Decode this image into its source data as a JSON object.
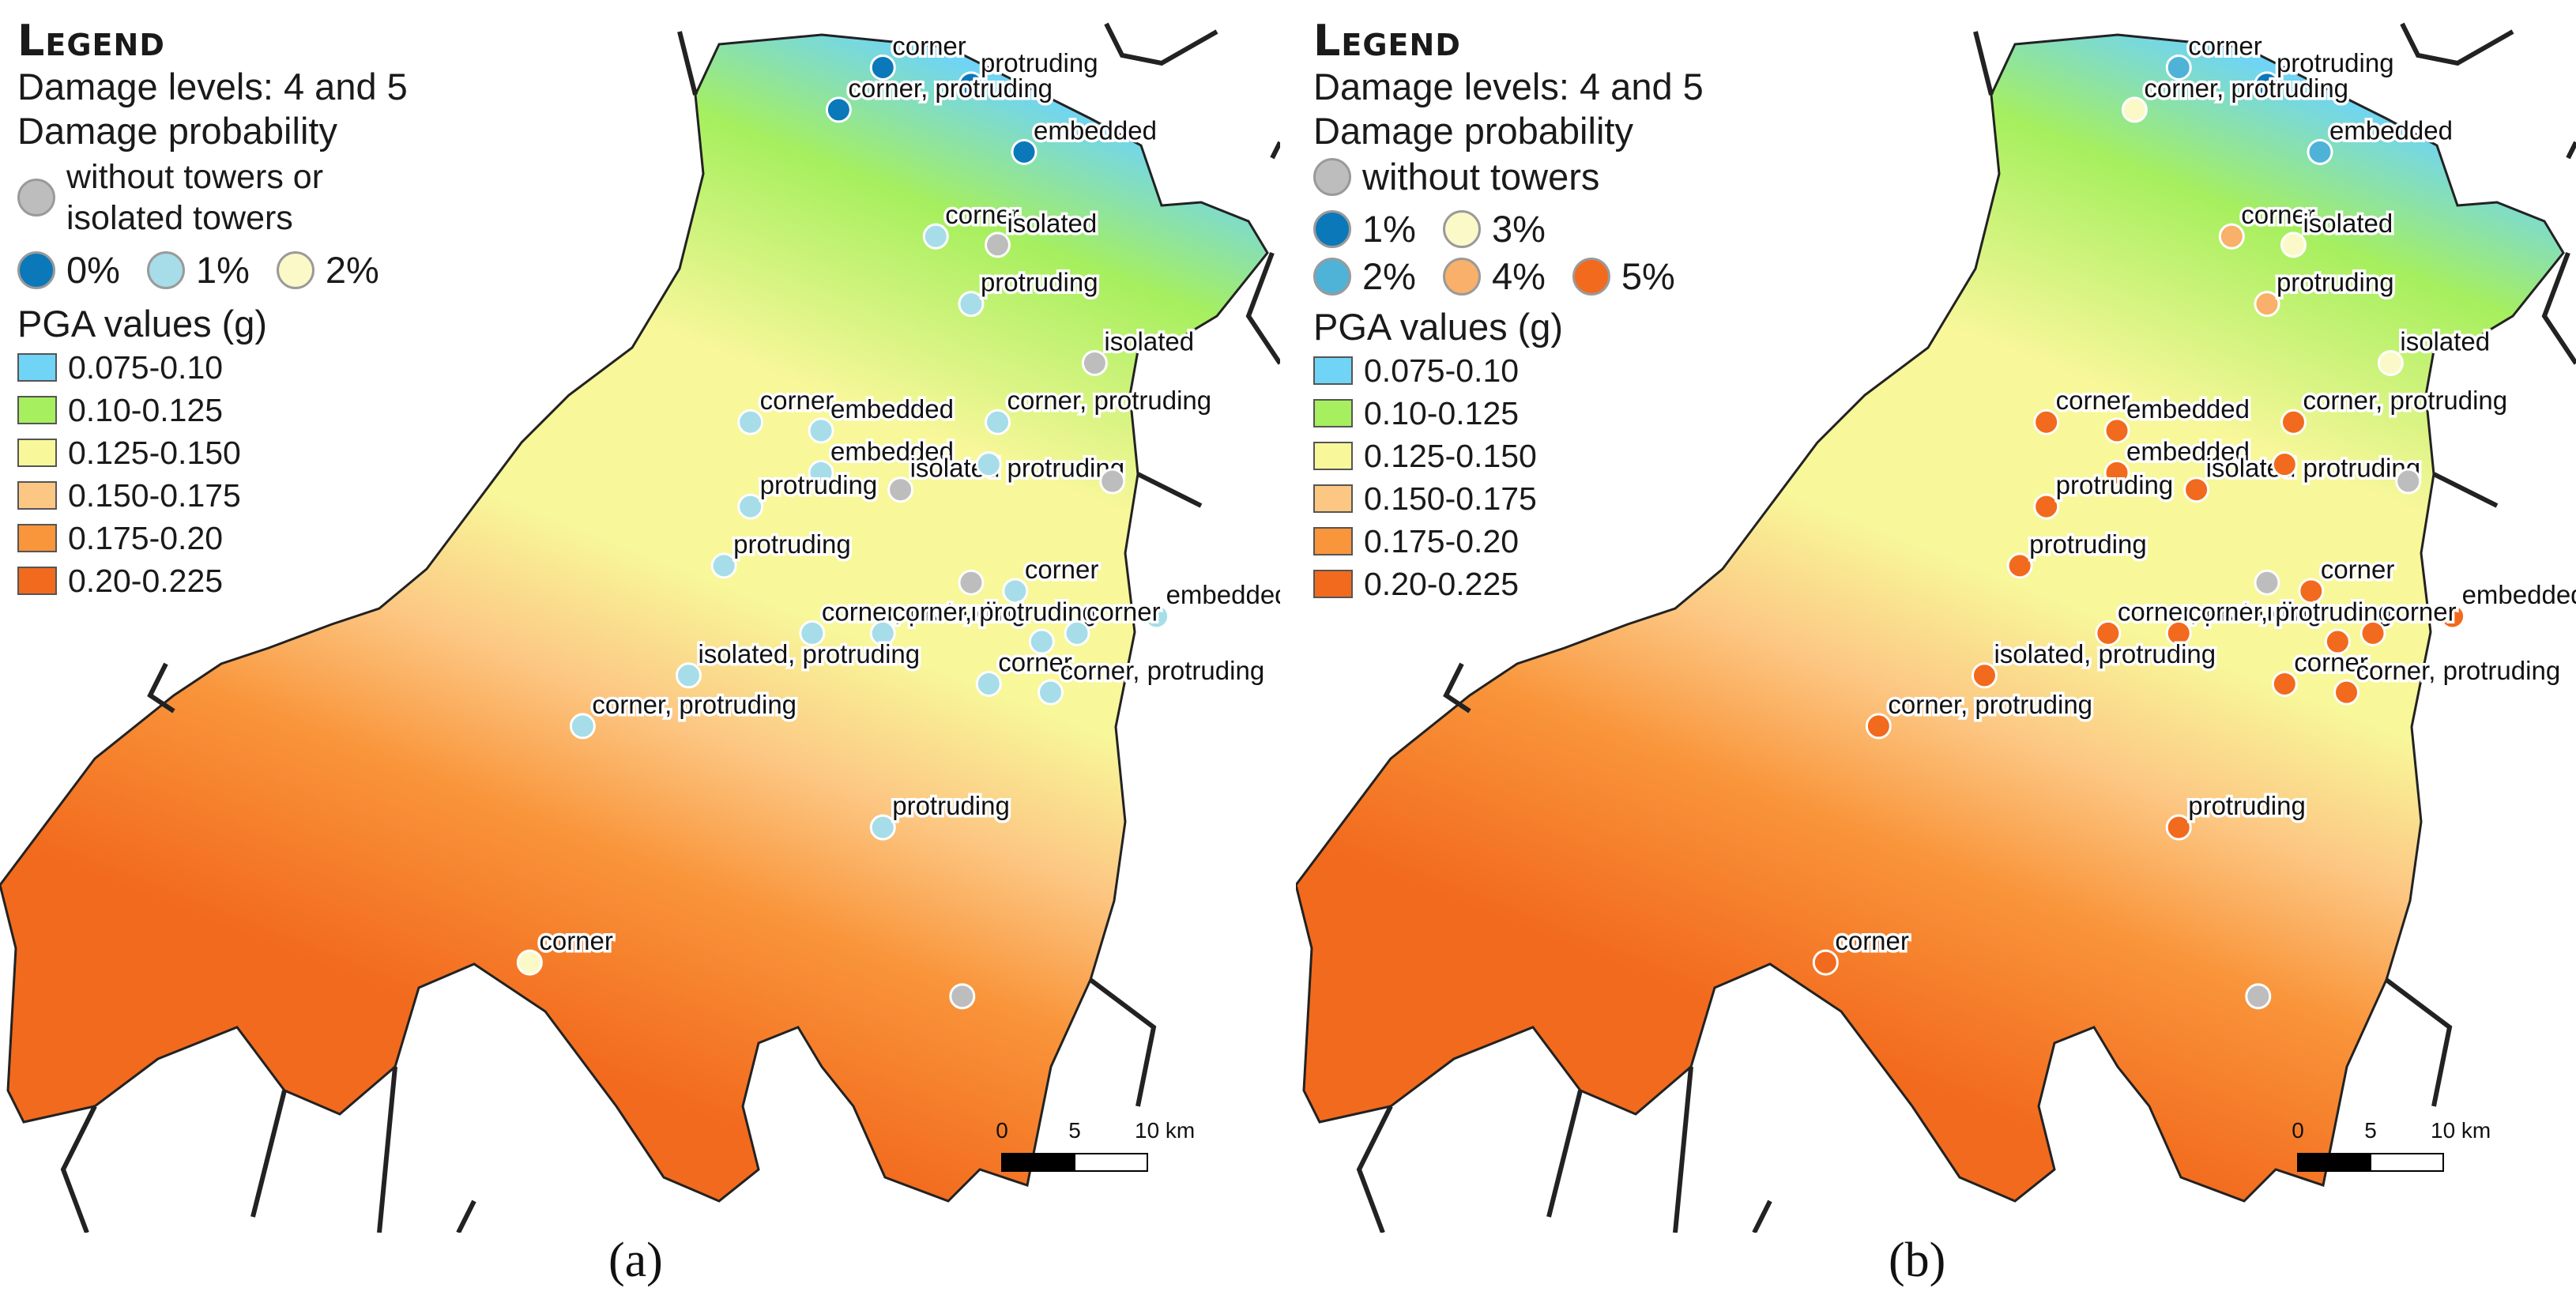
{
  "panels": [
    {
      "caption": "(a)",
      "legend": {
        "title": "Legend",
        "damage_levels": "Damage levels: 4 and 5",
        "damage_probability_heading": "Damage probability",
        "no_tower_label_line1": "without towers or",
        "no_tower_label_line2": "isolated towers",
        "probability_classes": [
          {
            "label": "0%",
            "color": "#0b78b9"
          },
          {
            "label": "1%",
            "color": "#a6dde8"
          },
          {
            "label": "2%",
            "color": "#fbf9c8"
          }
        ]
      },
      "pga_heading": "PGA values (g)",
      "pga_classes": [
        {
          "label": "0.075-0.10",
          "color": "#6fd4f5"
        },
        {
          "label": "0.10-0.125",
          "color": "#a6ef5e"
        },
        {
          "label": "0.125-0.150",
          "color": "#f8f79a"
        },
        {
          "label": "0.150-0.175",
          "color": "#fcc783"
        },
        {
          "label": "0.175-0.20",
          "color": "#f9953b"
        },
        {
          "label": "0.20-0.225",
          "color": "#f26a1d"
        }
      ],
      "buildings": [
        {
          "label": "corner",
          "lat": 46.4,
          "lon": 14.2,
          "class": "0%"
        },
        {
          "label": "protruding",
          "lat": 46.38,
          "lon": 14.3,
          "class": "0%"
        },
        {
          "label": "corner, protruding",
          "lat": 46.35,
          "lon": 14.15,
          "class": "0%"
        },
        {
          "label": "embedded",
          "lat": 46.3,
          "lon": 14.36,
          "class": "0%"
        },
        {
          "label": "corner",
          "lat": 46.2,
          "lon": 14.26,
          "class": "1%"
        },
        {
          "label": "isolated",
          "lat": 46.19,
          "lon": 14.33,
          "class": "none"
        },
        {
          "label": "protruding",
          "lat": 46.12,
          "lon": 14.3,
          "class": "1%"
        },
        {
          "label": "isolated",
          "lat": 46.05,
          "lon": 14.44,
          "class": "none"
        },
        {
          "label": "corner",
          "lat": 45.98,
          "lon": 14.05,
          "class": "1%"
        },
        {
          "label": "embedded",
          "lat": 45.97,
          "lon": 14.13,
          "class": "1%"
        },
        {
          "label": "corner, protruding",
          "lat": 45.98,
          "lon": 14.33,
          "class": "1%"
        },
        {
          "label": "embedded",
          "lat": 45.92,
          "lon": 14.13,
          "class": "1%"
        },
        {
          "label": "isolated protruding",
          "lat": 45.9,
          "lon": 14.22,
          "class": "none"
        },
        {
          "label": "",
          "lat": 45.93,
          "lon": 14.32,
          "class": "1%"
        },
        {
          "label": "",
          "lat": 45.91,
          "lon": 14.46,
          "class": "none"
        },
        {
          "label": "protruding",
          "lat": 45.88,
          "lon": 14.05,
          "class": "1%"
        },
        {
          "label": "protruding",
          "lat": 45.81,
          "lon": 14.02,
          "class": "1%"
        },
        {
          "label": "",
          "lat": 45.79,
          "lon": 14.3,
          "class": "none"
        },
        {
          "label": "corner",
          "lat": 45.78,
          "lon": 14.35,
          "class": "1%"
        },
        {
          "label": "embedded",
          "lat": 45.75,
          "lon": 14.51,
          "class": "1%"
        },
        {
          "label": "corner, protruding",
          "lat": 45.73,
          "lon": 14.12,
          "class": "1%"
        },
        {
          "label": "corner, protruding",
          "lat": 45.73,
          "lon": 14.2,
          "class": "1%"
        },
        {
          "label": "",
          "lat": 45.72,
          "lon": 14.38,
          "class": "1%"
        },
        {
          "label": "corner",
          "lat": 45.73,
          "lon": 14.42,
          "class": "1%"
        },
        {
          "label": "isolated, protruding",
          "lat": 45.68,
          "lon": 13.98,
          "class": "1%"
        },
        {
          "label": "corner",
          "lat": 45.67,
          "lon": 14.32,
          "class": "1%"
        },
        {
          "label": "corner, protruding",
          "lat": 45.66,
          "lon": 14.39,
          "class": "1%"
        },
        {
          "label": "corner, protruding",
          "lat": 45.62,
          "lon": 13.86,
          "class": "1%"
        },
        {
          "label": "protruding",
          "lat": 45.5,
          "lon": 14.2,
          "class": "1%"
        },
        {
          "label": "corner",
          "lat": 45.34,
          "lon": 13.8,
          "class": "2%"
        },
        {
          "label": "",
          "lat": 45.3,
          "lon": 14.29,
          "class": "none"
        }
      ]
    },
    {
      "caption": "(b)",
      "legend": {
        "title": "Legend",
        "damage_levels": "Damage levels: 4 and 5",
        "damage_probability_heading": "Damage probability",
        "no_tower_label": "without towers",
        "probability_classes": [
          {
            "label": "1%",
            "color": "#0b78b9"
          },
          {
            "label": "3%",
            "color": "#fbf9c8"
          },
          {
            "label": "2%",
            "color": "#4fb3d8"
          },
          {
            "label": "4%",
            "color": "#f8b06a"
          },
          {
            "label": "5%",
            "color": "#f26a1d"
          }
        ]
      },
      "pga_heading": "PGA values (g)",
      "pga_classes": [
        {
          "label": "0.075-0.10",
          "color": "#6fd4f5"
        },
        {
          "label": "0.10-0.125",
          "color": "#a6ef5e"
        },
        {
          "label": "0.125-0.150",
          "color": "#f8f79a"
        },
        {
          "label": "0.150-0.175",
          "color": "#fcc783"
        },
        {
          "label": "0.175-0.20",
          "color": "#f9953b"
        },
        {
          "label": "0.20-0.225",
          "color": "#f26a1d"
        }
      ],
      "buildings": [
        {
          "label": "corner",
          "lat": 46.4,
          "lon": 14.2,
          "class": "2%"
        },
        {
          "label": "protruding",
          "lat": 46.38,
          "lon": 14.3,
          "class": "1%"
        },
        {
          "label": "corner, protruding",
          "lat": 46.35,
          "lon": 14.15,
          "class": "3%"
        },
        {
          "label": "embedded",
          "lat": 46.3,
          "lon": 14.36,
          "class": "2%"
        },
        {
          "label": "corner",
          "lat": 46.2,
          "lon": 14.26,
          "class": "4%"
        },
        {
          "label": "isolated",
          "lat": 46.19,
          "lon": 14.33,
          "class": "3%"
        },
        {
          "label": "protruding",
          "lat": 46.12,
          "lon": 14.3,
          "class": "4%"
        },
        {
          "label": "isolated",
          "lat": 46.05,
          "lon": 14.44,
          "class": "3%"
        },
        {
          "label": "corner",
          "lat": 45.98,
          "lon": 14.05,
          "class": "5%"
        },
        {
          "label": "embedded",
          "lat": 45.97,
          "lon": 14.13,
          "class": "5%"
        },
        {
          "label": "corner, protruding",
          "lat": 45.98,
          "lon": 14.33,
          "class": "5%"
        },
        {
          "label": "embedded",
          "lat": 45.92,
          "lon": 14.13,
          "class": "5%"
        },
        {
          "label": "isolated protruding",
          "lat": 45.9,
          "lon": 14.22,
          "class": "5%"
        },
        {
          "label": "",
          "lat": 45.93,
          "lon": 14.32,
          "class": "5%"
        },
        {
          "label": "",
          "lat": 45.91,
          "lon": 14.46,
          "class": "none"
        },
        {
          "label": "protruding",
          "lat": 45.88,
          "lon": 14.05,
          "class": "5%"
        },
        {
          "label": "protruding",
          "lat": 45.81,
          "lon": 14.02,
          "class": "5%"
        },
        {
          "label": "",
          "lat": 45.79,
          "lon": 14.3,
          "class": "none"
        },
        {
          "label": "corner",
          "lat": 45.78,
          "lon": 14.35,
          "class": "5%"
        },
        {
          "label": "embedded",
          "lat": 45.75,
          "lon": 14.51,
          "class": "5%"
        },
        {
          "label": "corner, protruding",
          "lat": 45.73,
          "lon": 14.12,
          "class": "5%"
        },
        {
          "label": "corner, protruding",
          "lat": 45.73,
          "lon": 14.2,
          "class": "5%"
        },
        {
          "label": "",
          "lat": 45.72,
          "lon": 14.38,
          "class": "5%"
        },
        {
          "label": "corner",
          "lat": 45.73,
          "lon": 14.42,
          "class": "5%"
        },
        {
          "label": "isolated, protruding",
          "lat": 45.68,
          "lon": 13.98,
          "class": "5%"
        },
        {
          "label": "corner",
          "lat": 45.67,
          "lon": 14.32,
          "class": "5%"
        },
        {
          "label": "corner, protruding",
          "lat": 45.66,
          "lon": 14.39,
          "class": "5%"
        },
        {
          "label": "corner, protruding",
          "lat": 45.62,
          "lon": 13.86,
          "class": "5%"
        },
        {
          "label": "protruding",
          "lat": 45.5,
          "lon": 14.2,
          "class": "5%"
        },
        {
          "label": "corner",
          "lat": 45.34,
          "lon": 13.8,
          "class": "5%"
        },
        {
          "label": "",
          "lat": 45.3,
          "lon": 14.29,
          "class": "none"
        }
      ]
    }
  ],
  "no_tower_color": "#bdbdbd",
  "scale_bar": {
    "labels": [
      "0",
      "5",
      "10 km"
    ]
  }
}
